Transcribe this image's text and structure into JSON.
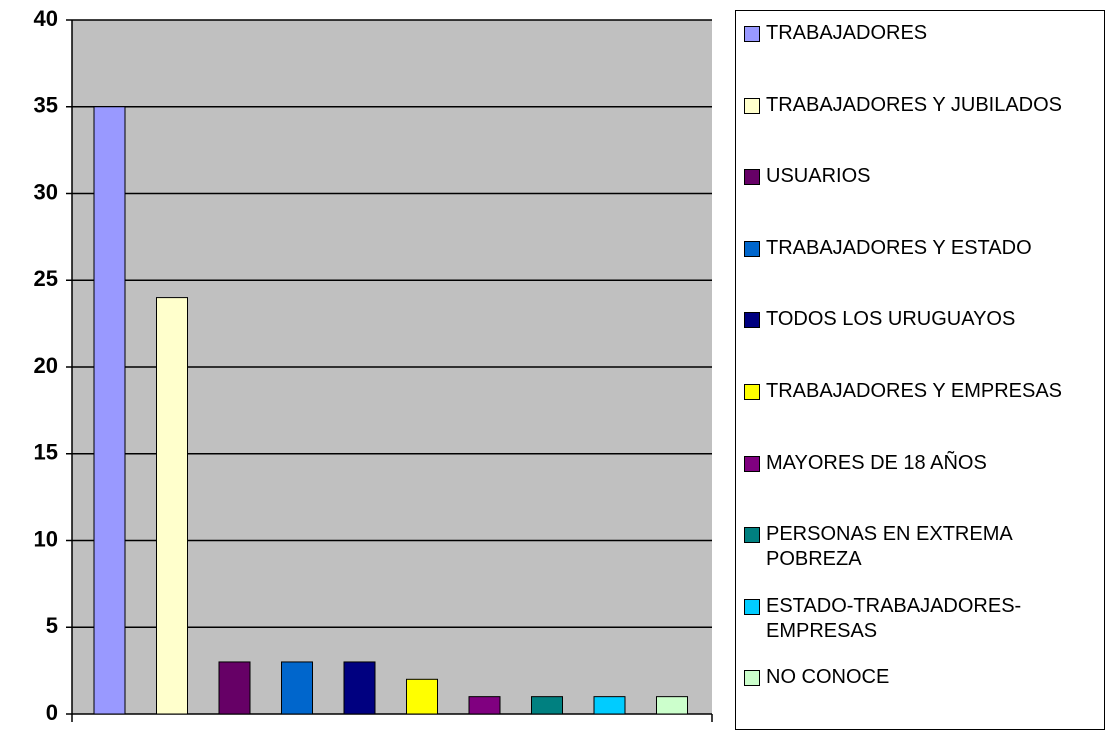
{
  "chart_data": {
    "type": "bar",
    "series": [
      {
        "name": "TRABAJADORES",
        "color": "#9999ff",
        "values": [
          35
        ]
      },
      {
        "name": "TRABAJADORES Y JUBILADOS",
        "color": "#ffffcc",
        "values": [
          24
        ]
      },
      {
        "name": "USUARIOS",
        "color": "#660066",
        "values": [
          3
        ]
      },
      {
        "name": "TRABAJADORES Y ESTADO",
        "color": "#0066cc",
        "values": [
          3
        ]
      },
      {
        "name": "TODOS LOS URUGUAYOS",
        "color": "#000080",
        "values": [
          3
        ]
      },
      {
        "name": "TRABAJADORES Y EMPRESAS",
        "color": "#ffff00",
        "values": [
          2
        ]
      },
      {
        "name": "MAYORES DE 18 AÑOS",
        "color": "#800080",
        "values": [
          1
        ]
      },
      {
        "name": "PERSONAS EN EXTREMA POBREZA",
        "color": "#008080",
        "values": [
          1
        ]
      },
      {
        "name": "ESTADO-TRABAJADORES-EMPRESAS",
        "color": "#00ccff",
        "values": [
          1
        ]
      },
      {
        "name": "NO CONOCE",
        "color": "#ccffcc",
        "values": [
          1
        ]
      }
    ],
    "ylim": [
      0,
      40
    ],
    "yticks": [
      0,
      5,
      10,
      15,
      20,
      25,
      30,
      35,
      40
    ],
    "grid": true,
    "legend": "right"
  }
}
